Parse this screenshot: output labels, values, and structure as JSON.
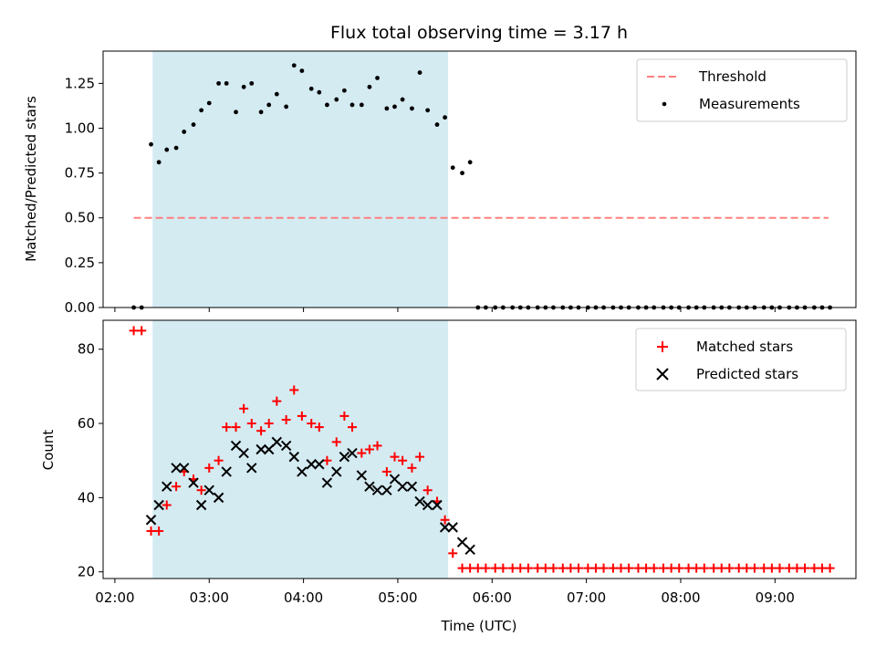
{
  "chart_data": [
    {
      "type": "scatter",
      "title": "Flux total observing time = 3.17 h",
      "xlabel": "",
      "ylabel": "Matched/Predicted stars",
      "ylim": [
        0,
        1.43
      ],
      "yticks": [
        0.0,
        0.25,
        0.5,
        0.75,
        1.0,
        1.25
      ],
      "ytick_labels": [
        "0.00",
        "0.25",
        "0.50",
        "0.75",
        "1.00",
        "1.25"
      ],
      "legend_position": "top-right",
      "shaded_span": {
        "start": "02:24",
        "end": "05:32",
        "color": "#add8e6"
      },
      "threshold": {
        "name": "Threshold",
        "value": 0.5,
        "x_start": "02:12",
        "x_end": "09:34",
        "color": "#ff7f7f"
      },
      "series": [
        {
          "name": "Measurements",
          "color": "#000000",
          "marker": "dot",
          "points": [
            [
              "02:12",
              0
            ],
            [
              "02:17",
              0
            ],
            [
              "02:23",
              0.91
            ],
            [
              "02:28",
              0.81
            ],
            [
              "02:33",
              0.88
            ],
            [
              "02:39",
              0.89
            ],
            [
              "02:44",
              0.98
            ],
            [
              "02:50",
              1.02
            ],
            [
              "02:55",
              1.1
            ],
            [
              "03:00",
              1.14
            ],
            [
              "03:06",
              1.25
            ],
            [
              "03:11",
              1.25
            ],
            [
              "03:17",
              1.09
            ],
            [
              "03:22",
              1.23
            ],
            [
              "03:27",
              1.25
            ],
            [
              "03:33",
              1.09
            ],
            [
              "03:38",
              1.13
            ],
            [
              "03:43",
              1.19
            ],
            [
              "03:49",
              1.12
            ],
            [
              "03:54",
              1.35
            ],
            [
              "03:59",
              1.32
            ],
            [
              "04:05",
              1.22
            ],
            [
              "04:10",
              1.2
            ],
            [
              "04:15",
              1.13
            ],
            [
              "04:21",
              1.16
            ],
            [
              "04:26",
              1.21
            ],
            [
              "04:31",
              1.13
            ],
            [
              "04:37",
              1.13
            ],
            [
              "04:42",
              1.23
            ],
            [
              "04:47",
              1.28
            ],
            [
              "04:53",
              1.11
            ],
            [
              "04:58",
              1.12
            ],
            [
              "05:03",
              1.16
            ],
            [
              "05:09",
              1.11
            ],
            [
              "05:14",
              1.31
            ],
            [
              "05:19",
              1.1
            ],
            [
              "05:25",
              1.02
            ],
            [
              "05:30",
              1.06
            ],
            [
              "05:35",
              0.78
            ],
            [
              "05:41",
              0.75
            ],
            [
              "05:46",
              0.81
            ],
            [
              "05:51",
              0
            ],
            [
              "05:56",
              0
            ],
            [
              "06:02",
              0
            ],
            [
              "06:07",
              0
            ],
            [
              "06:13",
              0
            ],
            [
              "06:18",
              0
            ],
            [
              "06:23",
              0
            ],
            [
              "06:29",
              0
            ],
            [
              "06:34",
              0
            ],
            [
              "06:39",
              0
            ],
            [
              "06:45",
              0
            ],
            [
              "06:50",
              0
            ],
            [
              "06:55",
              0
            ],
            [
              "07:01",
              0
            ],
            [
              "07:06",
              0
            ],
            [
              "07:11",
              0
            ],
            [
              "07:17",
              0
            ],
            [
              "07:22",
              0
            ],
            [
              "07:27",
              0
            ],
            [
              "07:33",
              0
            ],
            [
              "07:38",
              0
            ],
            [
              "07:43",
              0
            ],
            [
              "07:49",
              0
            ],
            [
              "07:54",
              0
            ],
            [
              "07:59",
              0
            ],
            [
              "08:05",
              0
            ],
            [
              "08:10",
              0
            ],
            [
              "08:15",
              0
            ],
            [
              "08:21",
              0
            ],
            [
              "08:26",
              0
            ],
            [
              "08:31",
              0
            ],
            [
              "08:37",
              0
            ],
            [
              "08:42",
              0
            ],
            [
              "08:47",
              0
            ],
            [
              "08:53",
              0
            ],
            [
              "08:58",
              0
            ],
            [
              "09:03",
              0
            ],
            [
              "09:09",
              0
            ],
            [
              "09:14",
              0
            ],
            [
              "09:19",
              0
            ],
            [
              "09:25",
              0
            ],
            [
              "09:30",
              0
            ],
            [
              "09:35",
              0
            ]
          ]
        }
      ]
    },
    {
      "type": "scatter",
      "title": "",
      "xlabel": "Time (UTC)",
      "ylabel": "Count",
      "ylim": [
        18.2,
        87.8
      ],
      "yticks": [
        20,
        40,
        60,
        80
      ],
      "ytick_labels": [
        "20",
        "40",
        "60",
        "80"
      ],
      "xticks": [
        "02:00",
        "03:00",
        "04:00",
        "05:00",
        "06:00",
        "07:00",
        "08:00",
        "09:00"
      ],
      "legend_position": "top-right",
      "shaded_span": {
        "start": "02:24",
        "end": "05:32",
        "color": "#add8e6"
      },
      "series": [
        {
          "name": "Matched stars",
          "color": "#ff0000",
          "marker": "plus",
          "points": [
            [
              "02:12",
              85
            ],
            [
              "02:17",
              85
            ],
            [
              "02:23",
              31
            ],
            [
              "02:28",
              31
            ],
            [
              "02:33",
              38
            ],
            [
              "02:39",
              43
            ],
            [
              "02:44",
              47
            ],
            [
              "02:50",
              45
            ],
            [
              "02:55",
              42
            ],
            [
              "03:00",
              48
            ],
            [
              "03:06",
              50
            ],
            [
              "03:11",
              59
            ],
            [
              "03:17",
              59
            ],
            [
              "03:22",
              64
            ],
            [
              "03:27",
              60
            ],
            [
              "03:33",
              58
            ],
            [
              "03:38",
              60
            ],
            [
              "03:43",
              66
            ],
            [
              "03:49",
              61
            ],
            [
              "03:54",
              69
            ],
            [
              "03:59",
              62
            ],
            [
              "04:05",
              60
            ],
            [
              "04:10",
              59
            ],
            [
              "04:15",
              50
            ],
            [
              "04:21",
              55
            ],
            [
              "04:26",
              62
            ],
            [
              "04:31",
              59
            ],
            [
              "04:37",
              52
            ],
            [
              "04:42",
              53
            ],
            [
              "04:47",
              54
            ],
            [
              "04:53",
              47
            ],
            [
              "04:58",
              51
            ],
            [
              "05:03",
              50
            ],
            [
              "05:09",
              48
            ],
            [
              "05:14",
              51
            ],
            [
              "05:19",
              42
            ],
            [
              "05:25",
              39
            ],
            [
              "05:30",
              34
            ],
            [
              "05:35",
              25
            ],
            [
              "05:41",
              21
            ],
            [
              "05:46",
              21
            ],
            [
              "05:51",
              21
            ],
            [
              "05:56",
              21
            ],
            [
              "06:02",
              21
            ],
            [
              "06:07",
              21
            ],
            [
              "06:13",
              21
            ],
            [
              "06:18",
              21
            ],
            [
              "06:23",
              21
            ],
            [
              "06:29",
              21
            ],
            [
              "06:34",
              21
            ],
            [
              "06:39",
              21
            ],
            [
              "06:45",
              21
            ],
            [
              "06:50",
              21
            ],
            [
              "06:55",
              21
            ],
            [
              "07:01",
              21
            ],
            [
              "07:06",
              21
            ],
            [
              "07:11",
              21
            ],
            [
              "07:17",
              21
            ],
            [
              "07:22",
              21
            ],
            [
              "07:27",
              21
            ],
            [
              "07:33",
              21
            ],
            [
              "07:38",
              21
            ],
            [
              "07:43",
              21
            ],
            [
              "07:49",
              21
            ],
            [
              "07:54",
              21
            ],
            [
              "07:59",
              21
            ],
            [
              "08:05",
              21
            ],
            [
              "08:10",
              21
            ],
            [
              "08:15",
              21
            ],
            [
              "08:21",
              21
            ],
            [
              "08:26",
              21
            ],
            [
              "08:31",
              21
            ],
            [
              "08:37",
              21
            ],
            [
              "08:42",
              21
            ],
            [
              "08:47",
              21
            ],
            [
              "08:53",
              21
            ],
            [
              "08:58",
              21
            ],
            [
              "09:03",
              21
            ],
            [
              "09:09",
              21
            ],
            [
              "09:14",
              21
            ],
            [
              "09:19",
              21
            ],
            [
              "09:25",
              21
            ],
            [
              "09:30",
              21
            ],
            [
              "09:35",
              21
            ]
          ]
        },
        {
          "name": "Predicted stars",
          "color": "#000000",
          "marker": "x",
          "points": [
            [
              "02:23",
              34
            ],
            [
              "02:28",
              38
            ],
            [
              "02:33",
              43
            ],
            [
              "02:39",
              48
            ],
            [
              "02:44",
              48
            ],
            [
              "02:50",
              44
            ],
            [
              "02:55",
              38
            ],
            [
              "03:00",
              42
            ],
            [
              "03:06",
              40
            ],
            [
              "03:11",
              47
            ],
            [
              "03:17",
              54
            ],
            [
              "03:22",
              52
            ],
            [
              "03:27",
              48
            ],
            [
              "03:33",
              53
            ],
            [
              "03:38",
              53
            ],
            [
              "03:43",
              55
            ],
            [
              "03:49",
              54
            ],
            [
              "03:54",
              51
            ],
            [
              "03:59",
              47
            ],
            [
              "04:05",
              49
            ],
            [
              "04:10",
              49
            ],
            [
              "04:15",
              44
            ],
            [
              "04:21",
              47
            ],
            [
              "04:26",
              51
            ],
            [
              "04:31",
              52
            ],
            [
              "04:37",
              46
            ],
            [
              "04:42",
              43
            ],
            [
              "04:47",
              42
            ],
            [
              "04:53",
              42
            ],
            [
              "04:58",
              45
            ],
            [
              "05:03",
              43
            ],
            [
              "05:09",
              43
            ],
            [
              "05:14",
              39
            ],
            [
              "05:19",
              38
            ],
            [
              "05:25",
              38
            ],
            [
              "05:30",
              32
            ],
            [
              "05:35",
              32
            ],
            [
              "05:41",
              28
            ],
            [
              "05:46",
              26
            ]
          ]
        }
      ]
    }
  ]
}
